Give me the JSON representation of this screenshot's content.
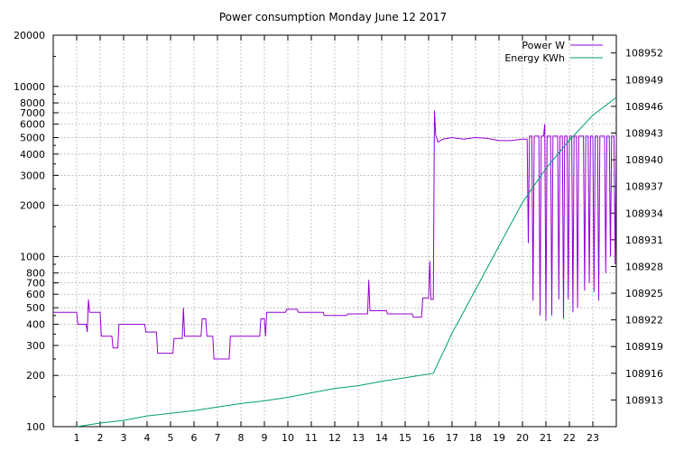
{
  "chart_data": {
    "type": "line",
    "title": "Power consumption Monday June 12 2017",
    "legend_position": "top-right",
    "grid": true,
    "x_axis": {
      "range": [
        0,
        24
      ],
      "ticks": [
        1,
        2,
        3,
        4,
        5,
        6,
        7,
        8,
        9,
        10,
        11,
        12,
        13,
        14,
        15,
        16,
        17,
        18,
        19,
        20,
        21,
        22,
        23
      ]
    },
    "y_left": {
      "scale": "log",
      "range": [
        100,
        20000
      ],
      "ticks": [
        100,
        200,
        300,
        400,
        500,
        600,
        700,
        800,
        1000,
        2000,
        3000,
        4000,
        5000,
        6000,
        7000,
        8000,
        10000,
        20000
      ]
    },
    "y_right": {
      "scale": "linear",
      "range": [
        108910,
        108954
      ],
      "ticks": [
        108913,
        108916,
        108919,
        108922,
        108925,
        108928,
        108931,
        108934,
        108937,
        108940,
        108943,
        108946,
        108949,
        108952
      ]
    },
    "series": [
      {
        "name": "Power W",
        "axis": "left",
        "color": "#9400d3",
        "points": [
          [
            0,
            470
          ],
          [
            1.0,
            470
          ],
          [
            1.05,
            400
          ],
          [
            1.4,
            400
          ],
          [
            1.45,
            360
          ],
          [
            1.5,
            560
          ],
          [
            1.55,
            470
          ],
          [
            2.0,
            470
          ],
          [
            2.05,
            340
          ],
          [
            2.5,
            340
          ],
          [
            2.55,
            290
          ],
          [
            2.75,
            290
          ],
          [
            2.8,
            400
          ],
          [
            3.9,
            400
          ],
          [
            3.95,
            360
          ],
          [
            4.4,
            360
          ],
          [
            4.45,
            270
          ],
          [
            5.1,
            270
          ],
          [
            5.15,
            330
          ],
          [
            5.5,
            330
          ],
          [
            5.55,
            500
          ],
          [
            5.6,
            340
          ],
          [
            6.3,
            340
          ],
          [
            6.35,
            430
          ],
          [
            6.5,
            430
          ],
          [
            6.55,
            340
          ],
          [
            6.8,
            340
          ],
          [
            6.85,
            250
          ],
          [
            7.5,
            250
          ],
          [
            7.55,
            340
          ],
          [
            8.8,
            340
          ],
          [
            8.85,
            430
          ],
          [
            9.0,
            430
          ],
          [
            9.05,
            340
          ],
          [
            9.1,
            470
          ],
          [
            9.9,
            470
          ],
          [
            9.95,
            490
          ],
          [
            10.4,
            490
          ],
          [
            10.45,
            470
          ],
          [
            11.5,
            470
          ],
          [
            11.55,
            450
          ],
          [
            12.5,
            450
          ],
          [
            12.55,
            460
          ],
          [
            13.4,
            460
          ],
          [
            13.45,
            730
          ],
          [
            13.5,
            480
          ],
          [
            14.2,
            480
          ],
          [
            14.25,
            460
          ],
          [
            15.3,
            460
          ],
          [
            15.35,
            440
          ],
          [
            15.7,
            440
          ],
          [
            15.75,
            570
          ],
          [
            16.0,
            570
          ],
          [
            16.05,
            940
          ],
          [
            16.1,
            560
          ],
          [
            16.2,
            560
          ],
          [
            16.25,
            7200
          ],
          [
            16.3,
            5200
          ],
          [
            16.4,
            4700
          ],
          [
            16.6,
            4900
          ],
          [
            17.0,
            5000
          ],
          [
            17.5,
            4900
          ],
          [
            18.0,
            5000
          ],
          [
            18.5,
            4950
          ],
          [
            19.0,
            4800
          ],
          [
            19.5,
            4800
          ],
          [
            20.0,
            4900
          ],
          [
            20.2,
            4900
          ],
          [
            20.25,
            1200
          ],
          [
            20.3,
            5100
          ],
          [
            20.4,
            5100
          ],
          [
            20.45,
            550
          ],
          [
            20.5,
            5100
          ],
          [
            20.7,
            5100
          ],
          [
            20.75,
            450
          ],
          [
            20.8,
            5100
          ],
          [
            20.9,
            5100
          ],
          [
            20.95,
            6000
          ],
          [
            21.0,
            420
          ],
          [
            21.05,
            5100
          ],
          [
            21.2,
            5100
          ],
          [
            21.25,
            450
          ],
          [
            21.3,
            5100
          ],
          [
            21.5,
            5100
          ],
          [
            21.55,
            560
          ],
          [
            21.6,
            5100
          ],
          [
            21.7,
            5100
          ],
          [
            21.75,
            430
          ],
          [
            21.8,
            5100
          ],
          [
            21.9,
            5100
          ],
          [
            21.95,
            560
          ],
          [
            22.0,
            5100
          ],
          [
            22.1,
            5100
          ],
          [
            22.15,
            470
          ],
          [
            22.2,
            5100
          ],
          [
            22.3,
            5100
          ],
          [
            22.35,
            500
          ],
          [
            22.4,
            5100
          ],
          [
            22.6,
            5100
          ],
          [
            22.65,
            630
          ],
          [
            22.7,
            5100
          ],
          [
            22.8,
            5100
          ],
          [
            22.85,
            700
          ],
          [
            22.9,
            5100
          ],
          [
            23.0,
            5100
          ],
          [
            23.05,
            620
          ],
          [
            23.1,
            5100
          ],
          [
            23.2,
            5100
          ],
          [
            23.25,
            550
          ],
          [
            23.3,
            5100
          ],
          [
            23.5,
            5100
          ],
          [
            23.55,
            800
          ],
          [
            23.6,
            5100
          ],
          [
            23.7,
            5100
          ],
          [
            23.75,
            1000
          ],
          [
            23.8,
            5100
          ],
          [
            23.9,
            5100
          ],
          [
            23.95,
            900
          ],
          [
            24.0,
            5100
          ]
        ]
      },
      {
        "name": "Energy KWh",
        "axis": "right",
        "color": "#009e73",
        "points": [
          [
            1.0,
            108910.0
          ],
          [
            2.0,
            108910.4
          ],
          [
            3.0,
            108910.7
          ],
          [
            4.0,
            108911.2
          ],
          [
            5.0,
            108911.5
          ],
          [
            6.0,
            108911.8
          ],
          [
            7.0,
            108912.2
          ],
          [
            8.0,
            108912.6
          ],
          [
            9.0,
            108912.9
          ],
          [
            10.0,
            108913.3
          ],
          [
            11.0,
            108913.8
          ],
          [
            12.0,
            108914.3
          ],
          [
            13.0,
            108914.6
          ],
          [
            14.0,
            108915.1
          ],
          [
            15.0,
            108915.5
          ],
          [
            16.2,
            108916.0
          ],
          [
            17.0,
            108920.5
          ],
          [
            18.0,
            108925.4
          ],
          [
            19.0,
            108930.3
          ],
          [
            20.0,
            108935.2
          ],
          [
            21.0,
            108939.0
          ],
          [
            22.0,
            108942.2
          ],
          [
            23.0,
            108945.0
          ],
          [
            24.0,
            108947.0
          ]
        ]
      }
    ]
  }
}
